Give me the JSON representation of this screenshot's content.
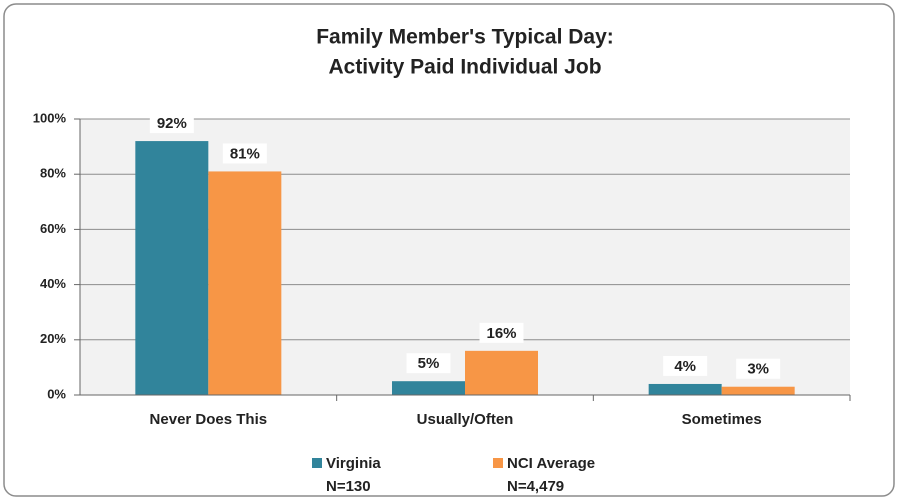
{
  "chart_data": {
    "type": "bar",
    "title": [
      "Family Member's Typical Day:",
      "Activity Paid Individual Job"
    ],
    "categories": [
      "Never Does This",
      "Usually/Often",
      "Sometimes"
    ],
    "series": [
      {
        "name": "Virginia",
        "note": "N=130",
        "color": "#31849b",
        "values": [
          92,
          5,
          4
        ],
        "value_labels": [
          "92%",
          "5%",
          "4%"
        ]
      },
      {
        "name": "NCI Average",
        "note": "N=4,479",
        "color": "#f79646",
        "values": [
          81,
          16,
          3
        ],
        "value_labels": [
          "81%",
          "16%",
          "3%"
        ]
      }
    ],
    "ylim": [
      0,
      100
    ],
    "yticks": [
      {
        "value": 0,
        "label": "0%"
      },
      {
        "value": 20,
        "label": "20%"
      },
      {
        "value": 40,
        "label": "40%"
      },
      {
        "value": 60,
        "label": "60%"
      },
      {
        "value": 80,
        "label": "80%"
      },
      {
        "value": 100,
        "label": "100%"
      }
    ],
    "grid": true
  }
}
